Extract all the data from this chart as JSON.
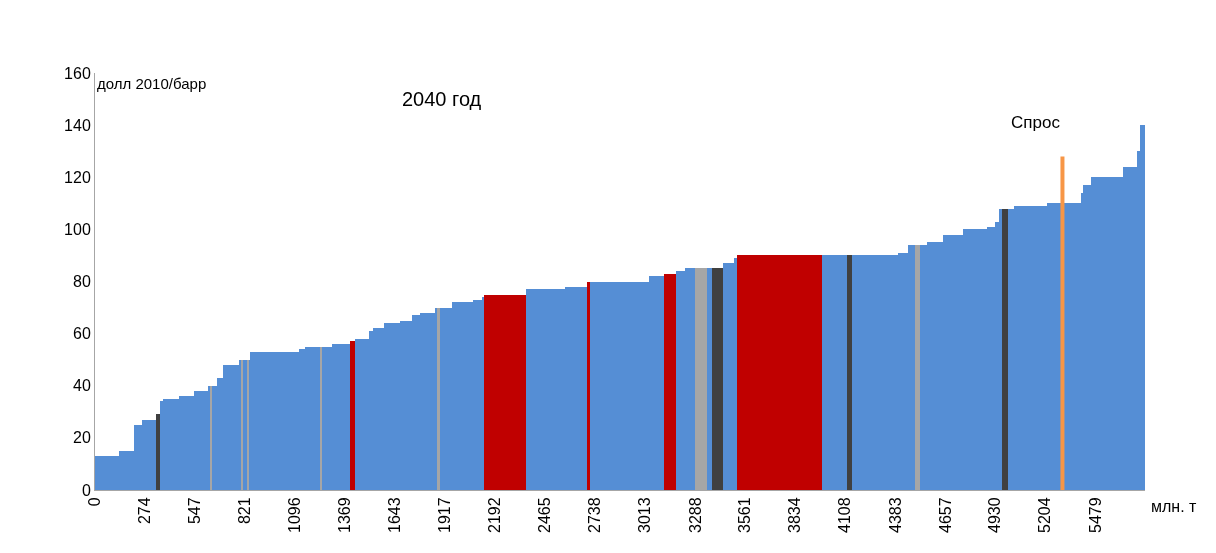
{
  "chart_data": {
    "type": "bar",
    "title": "2040 год",
    "ylabel": "долл 2010/барр",
    "xlabel": "млн. т",
    "annotations": [
      {
        "text": "Спрос",
        "x": 5298,
        "y": 128
      }
    ],
    "xlim": [
      0,
      5750
    ],
    "xticks": [
      0,
      274,
      547,
      821,
      1096,
      1369,
      1643,
      1917,
      2192,
      2465,
      2738,
      3013,
      3288,
      3561,
      3834,
      4108,
      4383,
      4657,
      4930,
      5204,
      5479
    ],
    "ylim": [
      0,
      160
    ],
    "yticks": [
      0,
      20,
      40,
      60,
      80,
      100,
      120,
      140,
      160
    ],
    "series": [
      {
        "x": [
          65.5,
          172.5,
          236,
          296,
          345,
          364.5,
          416.5,
          501,
          580.5,
          624.5,
          635.5,
          654.5,
          684.5,
          745,
          794.5,
          805.5,
          822,
          838.5,
          846.5,
          983.5,
          1134.5,
          1192,
          1238.5,
          1271.5,
          1348,
          1411,
          1463,
          1512,
          1553,
          1627,
          1704,
          1759,
          1822,
          1868.5,
          1882,
          1923,
          2013.5,
          2095.5,
          2125.5,
          2246,
          2468,
          2635.5,
          2704,
          2873.5,
          3076.5,
          3150.5,
          3208,
          3260,
          3320,
          3367,
          3411,
          3471,
          3509.5,
          3750.5,
          4051.5,
          4134,
          4274,
          4427,
          4473.5,
          4506.5,
          4539,
          4602,
          4701,
          4821.5,
          4909,
          4939.5,
          4958.5,
          4983,
          5013.5,
          5123,
          5306.5,
          5405,
          5432.5,
          5542,
          5668,
          5712,
          5735
        ],
        "values": [
          13,
          15,
          25,
          27,
          29,
          34,
          35,
          36,
          38,
          40,
          40,
          40,
          43,
          48,
          50,
          50,
          50,
          50,
          50,
          53,
          54,
          55,
          55,
          55,
          56,
          57,
          58,
          61,
          62,
          64,
          65,
          67,
          68,
          70,
          70,
          70,
          72,
          73,
          74,
          75,
          77,
          78,
          80,
          80,
          82,
          83,
          84,
          85,
          85,
          85,
          85,
          87,
          89,
          90,
          90,
          90,
          90,
          91,
          94,
          94,
          94,
          95,
          98,
          100,
          101,
          103,
          108,
          108,
          108,
          109,
          110,
          114,
          117,
          120,
          124,
          130,
          140
        ],
        "colors": [
          "#558ed5",
          "#558ed5",
          "#558ed5",
          "#558ed5",
          "#404040",
          "#558ed5",
          "#558ed5",
          "#558ed5",
          "#558ed5",
          "#558ed5",
          "#a6a6a6",
          "#558ed5",
          "#558ed5",
          "#558ed5",
          "#558ed5",
          "#a6a6a6",
          "#558ed5",
          "#a6a6a6",
          "#558ed5",
          "#558ed5",
          "#558ed5",
          "#558ed5",
          "#a6a6a6",
          "#558ed5",
          "#558ed5",
          "#c00000",
          "#558ed5",
          "#558ed5",
          "#558ed5",
          "#558ed5",
          "#558ed5",
          "#558ed5",
          "#558ed5",
          "#558ed5",
          "#a6a6a6",
          "#558ed5",
          "#558ed5",
          "#558ed5",
          "#558ed5",
          "#c00000",
          "#558ed5",
          "#558ed5",
          "#c00000",
          "#558ed5",
          "#558ed5",
          "#c00000",
          "#558ed5",
          "#558ed5",
          "#a6a6a6",
          "#558ed5",
          "#404040",
          "#558ed5",
          "#558ed5",
          "#c00000",
          "#558ed5",
          "#404040",
          "#558ed5",
          "#558ed5",
          "#558ed5",
          "#a6a6a6",
          "#558ed5",
          "#558ed5",
          "#558ed5",
          "#558ed5",
          "#558ed5",
          "#558ed5",
          "#558ed5",
          "#404040",
          "#558ed5",
          "#558ed5",
          "#558ed5",
          "#558ed5",
          "#558ed5",
          "#558ed5",
          "#558ed5",
          "#558ed5",
          "#558ed5"
        ]
      },
      {
        "type": "line",
        "color": "#f79646",
        "x": [
          5298,
          5298
        ],
        "values": [
          0,
          128
        ]
      }
    ]
  }
}
